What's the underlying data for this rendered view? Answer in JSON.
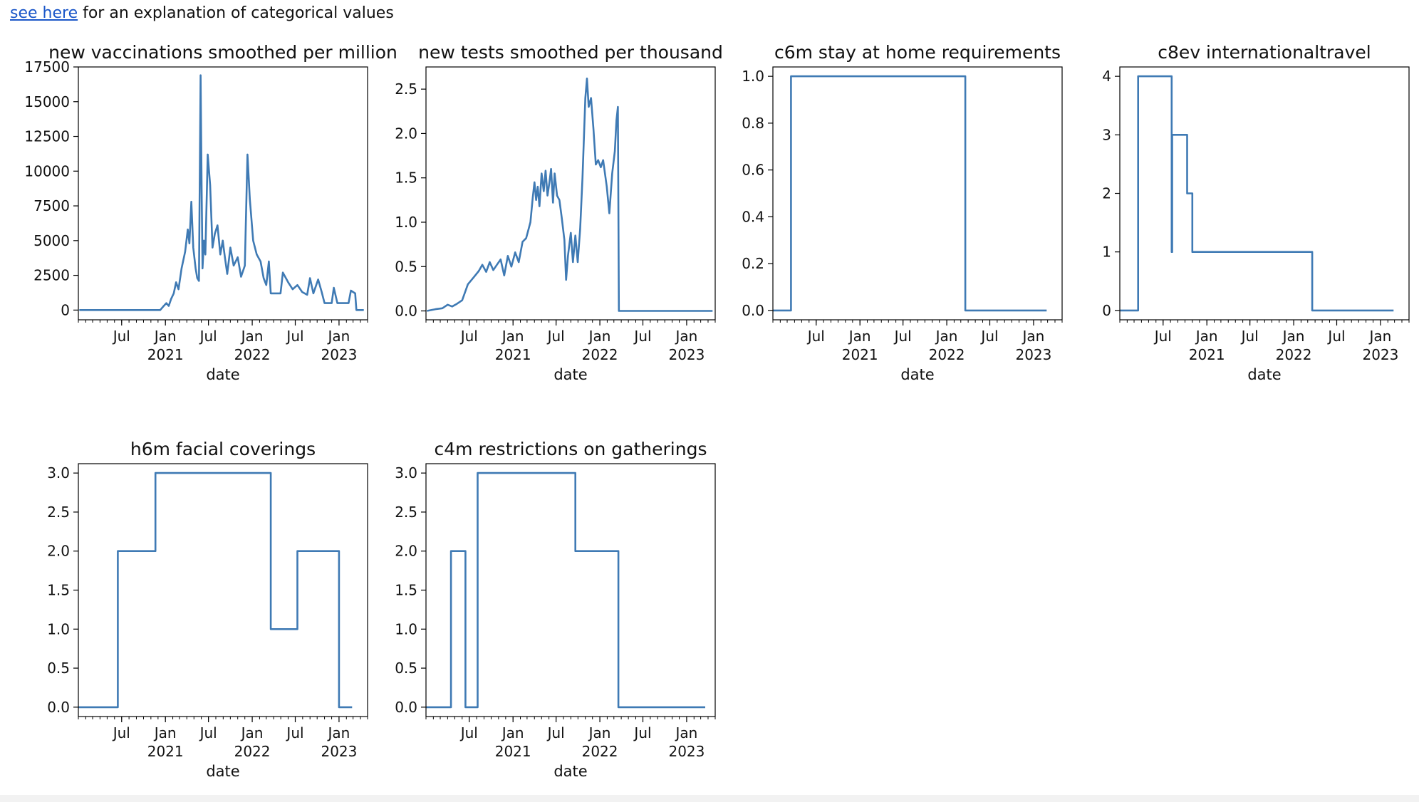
{
  "intro": {
    "link_text": "see here",
    "rest_text": " for an explanation of categorical values"
  },
  "theme": {
    "line_color": "#3f7ab4",
    "axis_color": "#000000"
  },
  "x_axis": {
    "label": "date",
    "ticks": [
      {
        "x": "2020-07-01",
        "line1": "Jul",
        "line2": ""
      },
      {
        "x": "2021-01-01",
        "line1": "Jan",
        "line2": "2021"
      },
      {
        "x": "2021-07-01",
        "line1": "Jul",
        "line2": ""
      },
      {
        "x": "2022-01-01",
        "line1": "Jan",
        "line2": "2022"
      },
      {
        "x": "2022-07-01",
        "line1": "Jul",
        "line2": ""
      },
      {
        "x": "2023-01-01",
        "line1": "Jan",
        "line2": "2023"
      }
    ],
    "range": [
      "2020-01-01",
      "2023-05-01"
    ]
  },
  "chart_data": [
    {
      "type": "line",
      "title": "new vaccinations smoothed per million",
      "xlabel": "date",
      "ylim": [
        -700,
        17500
      ],
      "yticks": [
        0,
        2500,
        5000,
        7500,
        10000,
        12500,
        15000,
        17500
      ],
      "ytick_labels": [
        "0",
        "2500",
        "5000",
        "7500",
        "10000",
        "12500",
        "15000",
        "17500"
      ],
      "step": false,
      "points": [
        [
          "2020-01-05",
          0
        ],
        [
          "2020-12-10",
          0
        ],
        [
          "2020-12-25",
          300
        ],
        [
          "2021-01-05",
          500
        ],
        [
          "2021-01-15",
          300
        ],
        [
          "2021-01-25",
          800
        ],
        [
          "2021-02-05",
          1200
        ],
        [
          "2021-02-15",
          2000
        ],
        [
          "2021-02-25",
          1500
        ],
        [
          "2021-03-10",
          3000
        ],
        [
          "2021-03-25",
          4200
        ],
        [
          "2021-04-05",
          5800
        ],
        [
          "2021-04-12",
          4800
        ],
        [
          "2021-04-20",
          7800
        ],
        [
          "2021-04-28",
          4500
        ],
        [
          "2021-05-08",
          3000
        ],
        [
          "2021-05-15",
          2300
        ],
        [
          "2021-05-22",
          2100
        ],
        [
          "2021-05-29",
          16900
        ],
        [
          "2021-06-02",
          9000
        ],
        [
          "2021-06-06",
          3000
        ],
        [
          "2021-06-12",
          5000
        ],
        [
          "2021-06-18",
          4000
        ],
        [
          "2021-06-28",
          11200
        ],
        [
          "2021-07-08",
          9000
        ],
        [
          "2021-07-18",
          4500
        ],
        [
          "2021-07-28",
          5500
        ],
        [
          "2021-08-08",
          6100
        ],
        [
          "2021-08-20",
          4000
        ],
        [
          "2021-08-30",
          5000
        ],
        [
          "2021-09-08",
          3800
        ],
        [
          "2021-09-18",
          2600
        ],
        [
          "2021-10-01",
          4500
        ],
        [
          "2021-10-15",
          3200
        ],
        [
          "2021-11-01",
          3800
        ],
        [
          "2021-11-15",
          2400
        ],
        [
          "2021-12-01",
          3200
        ],
        [
          "2021-12-12",
          11200
        ],
        [
          "2021-12-22",
          8000
        ],
        [
          "2022-01-05",
          5000
        ],
        [
          "2022-01-20",
          4000
        ],
        [
          "2022-02-05",
          3500
        ],
        [
          "2022-02-18",
          2300
        ],
        [
          "2022-03-01",
          1800
        ],
        [
          "2022-03-12",
          3500
        ],
        [
          "2022-03-20",
          1200
        ],
        [
          "2022-04-30",
          1200
        ],
        [
          "2022-05-10",
          2700
        ],
        [
          "2022-06-01",
          2000
        ],
        [
          "2022-06-20",
          1500
        ],
        [
          "2022-07-10",
          1800
        ],
        [
          "2022-07-30",
          1300
        ],
        [
          "2022-08-20",
          1100
        ],
        [
          "2022-09-01",
          2300
        ],
        [
          "2022-09-15",
          1200
        ],
        [
          "2022-10-05",
          2200
        ],
        [
          "2022-10-20",
          1300
        ],
        [
          "2022-11-01",
          500
        ],
        [
          "2022-12-01",
          500
        ],
        [
          "2022-12-10",
          1600
        ],
        [
          "2022-12-25",
          500
        ],
        [
          "2023-02-10",
          500
        ],
        [
          "2023-02-20",
          1400
        ],
        [
          "2023-03-10",
          1200
        ],
        [
          "2023-03-15",
          0
        ],
        [
          "2023-04-15",
          0
        ]
      ]
    },
    {
      "type": "line",
      "title": "new tests smoothed per thousand",
      "xlabel": "date",
      "ylim": [
        -0.1,
        2.75
      ],
      "yticks": [
        0,
        0.5,
        1.0,
        1.5,
        2.0,
        2.5
      ],
      "ytick_labels": [
        "0.0",
        "0.5",
        "1.0",
        "1.5",
        "2.0",
        "2.5"
      ],
      "step": false,
      "points": [
        [
          "2020-01-05",
          0
        ],
        [
          "2020-02-10",
          0.02
        ],
        [
          "2020-03-10",
          0.03
        ],
        [
          "2020-04-01",
          0.07
        ],
        [
          "2020-04-20",
          0.05
        ],
        [
          "2020-05-10",
          0.08
        ],
        [
          "2020-06-01",
          0.12
        ],
        [
          "2020-06-25",
          0.3
        ],
        [
          "2020-07-20",
          0.38
        ],
        [
          "2020-08-10",
          0.45
        ],
        [
          "2020-08-25",
          0.52
        ],
        [
          "2020-09-10",
          0.44
        ],
        [
          "2020-09-25",
          0.55
        ],
        [
          "2020-10-10",
          0.46
        ],
        [
          "2020-10-25",
          0.52
        ],
        [
          "2020-11-10",
          0.58
        ],
        [
          "2020-11-25",
          0.4
        ],
        [
          "2020-12-10",
          0.62
        ],
        [
          "2020-12-25",
          0.5
        ],
        [
          "2021-01-10",
          0.66
        ],
        [
          "2021-01-25",
          0.55
        ],
        [
          "2021-02-10",
          0.78
        ],
        [
          "2021-02-25",
          0.82
        ],
        [
          "2021-03-15",
          1.0
        ],
        [
          "2021-03-25",
          1.28
        ],
        [
          "2021-04-01",
          1.45
        ],
        [
          "2021-04-08",
          1.25
        ],
        [
          "2021-04-15",
          1.4
        ],
        [
          "2021-04-22",
          1.18
        ],
        [
          "2021-05-01",
          1.55
        ],
        [
          "2021-05-10",
          1.35
        ],
        [
          "2021-05-18",
          1.58
        ],
        [
          "2021-05-26",
          1.3
        ],
        [
          "2021-06-03",
          1.45
        ],
        [
          "2021-06-10",
          1.6
        ],
        [
          "2021-06-18",
          1.22
        ],
        [
          "2021-06-25",
          1.55
        ],
        [
          "2021-07-05",
          1.3
        ],
        [
          "2021-07-15",
          1.25
        ],
        [
          "2021-07-25",
          1.05
        ],
        [
          "2021-08-05",
          0.8
        ],
        [
          "2021-08-12",
          0.35
        ],
        [
          "2021-08-20",
          0.62
        ],
        [
          "2021-09-01",
          0.88
        ],
        [
          "2021-09-10",
          0.55
        ],
        [
          "2021-09-20",
          0.85
        ],
        [
          "2021-09-30",
          0.55
        ],
        [
          "2021-10-10",
          0.92
        ],
        [
          "2021-10-20",
          1.5
        ],
        [
          "2021-11-01",
          2.4
        ],
        [
          "2021-11-08",
          2.62
        ],
        [
          "2021-11-15",
          2.3
        ],
        [
          "2021-11-25",
          2.4
        ],
        [
          "2021-12-05",
          2.05
        ],
        [
          "2021-12-15",
          1.65
        ],
        [
          "2021-12-25",
          1.7
        ],
        [
          "2022-01-05",
          1.62
        ],
        [
          "2022-01-15",
          1.7
        ],
        [
          "2022-01-30",
          1.4
        ],
        [
          "2022-02-10",
          1.1
        ],
        [
          "2022-02-22",
          1.55
        ],
        [
          "2022-03-05",
          1.8
        ],
        [
          "2022-03-12",
          2.15
        ],
        [
          "2022-03-18",
          2.3
        ],
        [
          "2022-03-22",
          0
        ],
        [
          "2023-04-20",
          0
        ]
      ]
    },
    {
      "type": "line",
      "title": "c6m stay at home requirements",
      "xlabel": "date",
      "ylim": [
        -0.04,
        1.04
      ],
      "yticks": [
        0,
        0.2,
        0.4,
        0.6,
        0.8,
        1.0
      ],
      "ytick_labels": [
        "0.0",
        "0.2",
        "0.4",
        "0.6",
        "0.8",
        "1.0"
      ],
      "step": true,
      "points": [
        [
          "2020-01-01",
          0
        ],
        [
          "2020-03-17",
          1
        ],
        [
          "2022-03-20",
          0
        ],
        [
          "2023-02-25",
          0
        ]
      ]
    },
    {
      "type": "line",
      "title": "c8ev internationaltravel",
      "xlabel": "date",
      "ylim": [
        -0.16,
        4.16
      ],
      "yticks": [
        0,
        1,
        2,
        3,
        4
      ],
      "ytick_labels": [
        "0",
        "1",
        "2",
        "3",
        "4"
      ],
      "step": true,
      "points": [
        [
          "2020-01-01",
          0
        ],
        [
          "2020-03-18",
          4
        ],
        [
          "2020-08-06",
          1
        ],
        [
          "2020-08-08",
          3
        ],
        [
          "2020-10-10",
          2
        ],
        [
          "2020-11-01",
          1
        ],
        [
          "2022-03-20",
          0
        ],
        [
          "2023-02-25",
          0
        ]
      ]
    },
    {
      "type": "line",
      "title": "h6m facial coverings",
      "xlabel": "date",
      "ylim": [
        -0.12,
        3.12
      ],
      "yticks": [
        0,
        0.5,
        1.0,
        1.5,
        2.0,
        2.5,
        3.0
      ],
      "ytick_labels": [
        "0.0",
        "0.5",
        "1.0",
        "1.5",
        "2.0",
        "2.5",
        "3.0"
      ],
      "step": true,
      "points": [
        [
          "2020-01-01",
          0
        ],
        [
          "2020-06-15",
          2
        ],
        [
          "2020-11-20",
          3
        ],
        [
          "2022-03-20",
          1
        ],
        [
          "2022-07-10",
          2
        ],
        [
          "2023-01-01",
          0
        ],
        [
          "2023-02-25",
          0
        ]
      ]
    },
    {
      "type": "line",
      "title": "c4m restrictions on gatherings",
      "xlabel": "date",
      "ylim": [
        -0.12,
        3.12
      ],
      "yticks": [
        0,
        0.5,
        1.0,
        1.5,
        2.0,
        2.5,
        3.0
      ],
      "ytick_labels": [
        "0.0",
        "0.5",
        "1.0",
        "1.5",
        "2.0",
        "2.5",
        "3.0"
      ],
      "step": true,
      "points": [
        [
          "2020-01-01",
          0
        ],
        [
          "2020-04-15",
          2
        ],
        [
          "2020-06-15",
          0
        ],
        [
          "2020-08-05",
          3
        ],
        [
          "2021-09-20",
          2
        ],
        [
          "2022-03-20",
          0
        ],
        [
          "2023-03-20",
          0
        ]
      ]
    }
  ]
}
